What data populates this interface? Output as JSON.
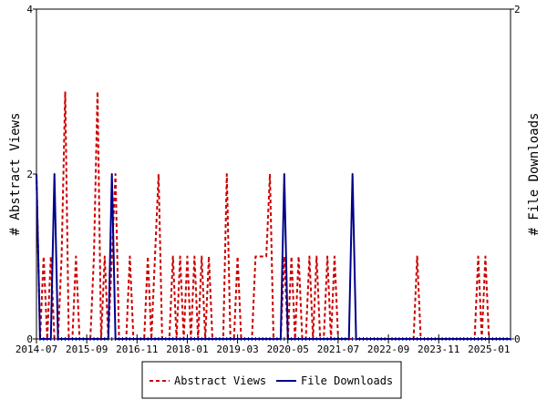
{
  "chart_data": {
    "type": "line",
    "xlabel": "",
    "ylabel": "# Abstract Views",
    "y2label": "# File Downloads",
    "ylim": [
      0,
      4
    ],
    "y2lim": [
      0,
      2
    ],
    "y_ticks": [
      "0",
      "2",
      "4"
    ],
    "y2_ticks": [
      "0",
      "2"
    ],
    "x_ticks": [
      "2014-07",
      "2015-09",
      "2016-11",
      "2018-01",
      "2019-03",
      "2020-05",
      "2021-07",
      "2022-09",
      "2023-11",
      "2025-01"
    ],
    "x_range_months": [
      0,
      132
    ],
    "grid": false,
    "legend": "bottom",
    "series": [
      {
        "name": "Abstract Views",
        "axis": "left",
        "color": "#cc0000",
        "style": "dashed",
        "x": [
          0,
          1,
          2,
          3,
          4,
          5,
          6,
          7,
          8,
          9,
          10,
          11,
          12,
          13,
          14,
          15,
          16,
          17,
          18,
          19,
          20,
          21,
          22,
          23,
          24,
          25,
          26,
          27,
          28,
          29,
          30,
          31,
          32,
          33,
          34,
          35,
          36,
          37,
          38,
          39,
          40,
          41,
          42,
          43,
          44,
          45,
          46,
          47,
          48,
          49,
          50,
          51,
          52,
          53,
          54,
          55,
          56,
          57,
          58,
          59,
          60,
          61,
          62,
          63,
          64,
          65,
          66,
          67,
          68,
          69,
          70,
          71,
          72,
          73,
          74,
          75,
          76,
          77,
          78,
          79,
          80,
          81,
          82,
          83,
          84,
          85,
          86,
          87,
          88,
          89,
          90,
          91,
          92,
          93,
          94,
          95,
          96,
          97,
          98,
          99,
          100,
          101,
          102,
          103,
          104,
          105,
          106,
          107,
          108,
          109,
          110,
          111,
          112,
          113,
          114,
          115,
          116,
          117,
          118,
          119,
          120,
          121,
          122,
          123,
          124,
          125,
          126,
          127,
          128,
          129,
          130,
          131,
          132
        ],
        "values": [
          2,
          0,
          1,
          0,
          1,
          0,
          0,
          1,
          3,
          0,
          0,
          1,
          0,
          0,
          0,
          0,
          1,
          3,
          0,
          1,
          0,
          1,
          2,
          0,
          0,
          0,
          1,
          0,
          0,
          0,
          0,
          1,
          0,
          1,
          2,
          0,
          0,
          0,
          1,
          0,
          1,
          0,
          1,
          0,
          1,
          0,
          1,
          0,
          1,
          0,
          0,
          0,
          0,
          2,
          0,
          0,
          1,
          0,
          0,
          0,
          0,
          1,
          1,
          1,
          1,
          2,
          0,
          0,
          0,
          1,
          0,
          1,
          0,
          1,
          0,
          0,
          1,
          0,
          1,
          0,
          0,
          1,
          0,
          1,
          0,
          0,
          0,
          0,
          0,
          0,
          0,
          0,
          0,
          0,
          0,
          0,
          0,
          0,
          0,
          0,
          0,
          0,
          0,
          0,
          0,
          0,
          1,
          0,
          0,
          0,
          0,
          0,
          0,
          0,
          0,
          0,
          0,
          0,
          0,
          0,
          0,
          0,
          0,
          1,
          0,
          1,
          0,
          0,
          0,
          0,
          0,
          0,
          0
        ]
      },
      {
        "name": "File Downloads",
        "axis": "right",
        "color": "#00008b",
        "style": "solid",
        "x": [
          0,
          1,
          2,
          3,
          4,
          5,
          6,
          7,
          8,
          9,
          10,
          11,
          12,
          13,
          14,
          15,
          16,
          17,
          18,
          19,
          20,
          21,
          22,
          23,
          24,
          25,
          26,
          27,
          28,
          29,
          30,
          31,
          32,
          33,
          34,
          35,
          36,
          37,
          38,
          39,
          40,
          41,
          42,
          43,
          44,
          45,
          46,
          47,
          48,
          49,
          50,
          51,
          52,
          53,
          54,
          55,
          56,
          57,
          58,
          59,
          60,
          61,
          62,
          63,
          64,
          65,
          66,
          67,
          68,
          69,
          70,
          71,
          72,
          73,
          74,
          75,
          76,
          77,
          78,
          79,
          80,
          81,
          82,
          83,
          84,
          85,
          86,
          87,
          88,
          89,
          90,
          91,
          92,
          93,
          94,
          95,
          96,
          97,
          98,
          99,
          100,
          101,
          102,
          103,
          104,
          105,
          106,
          107,
          108,
          109,
          110,
          111,
          112,
          113,
          114,
          115,
          116,
          117,
          118,
          119,
          120,
          121,
          122,
          123,
          124,
          125,
          126,
          127,
          128,
          129,
          130,
          131,
          132
        ],
        "values": [
          1,
          0,
          0,
          0,
          0,
          1,
          0,
          0,
          0,
          0,
          0,
          0,
          0,
          0,
          0,
          0,
          0,
          0,
          0,
          0,
          0,
          1,
          0,
          0,
          0,
          0,
          0,
          0,
          0,
          0,
          0,
          0,
          0,
          0,
          0,
          0,
          0,
          0,
          0,
          0,
          0,
          0,
          0,
          0,
          0,
          0,
          0,
          0,
          0,
          0,
          0,
          0,
          0,
          0,
          0,
          0,
          0,
          0,
          0,
          0,
          0,
          0,
          0,
          0,
          0,
          0,
          0,
          0,
          0,
          1,
          0,
          0,
          0,
          0,
          0,
          0,
          0,
          0,
          0,
          0,
          0,
          0,
          0,
          0,
          0,
          0,
          0,
          0,
          1,
          0,
          0,
          0,
          0,
          0,
          0,
          0,
          0,
          0,
          0,
          0,
          0,
          0,
          0,
          0,
          0,
          0,
          0,
          0,
          0,
          0,
          0,
          0,
          0,
          0,
          0,
          0,
          0,
          0,
          0,
          0,
          0,
          0,
          0,
          0,
          0,
          0,
          0,
          0,
          0,
          0,
          0,
          0,
          0
        ]
      }
    ]
  }
}
